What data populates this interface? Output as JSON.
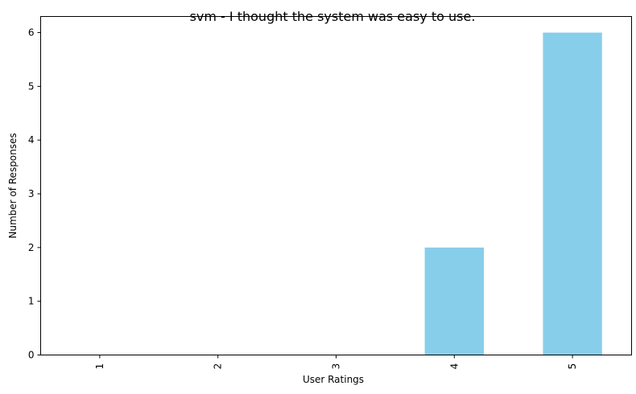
{
  "chart_data": {
    "type": "bar",
    "title": "svm - I thought the system was easy to use.",
    "xlabel": "User Ratings",
    "ylabel": "Number of Responses",
    "categories": [
      "1",
      "2",
      "3",
      "4",
      "5"
    ],
    "values": [
      0,
      0,
      0,
      2,
      6
    ],
    "ylim": [
      0,
      6.3
    ],
    "yticks": [
      "0",
      "1",
      "2",
      "3",
      "4",
      "5",
      "6"
    ],
    "grid": false,
    "bar_color": "#87ceeb",
    "x_tick_rotation": "vertical"
  }
}
